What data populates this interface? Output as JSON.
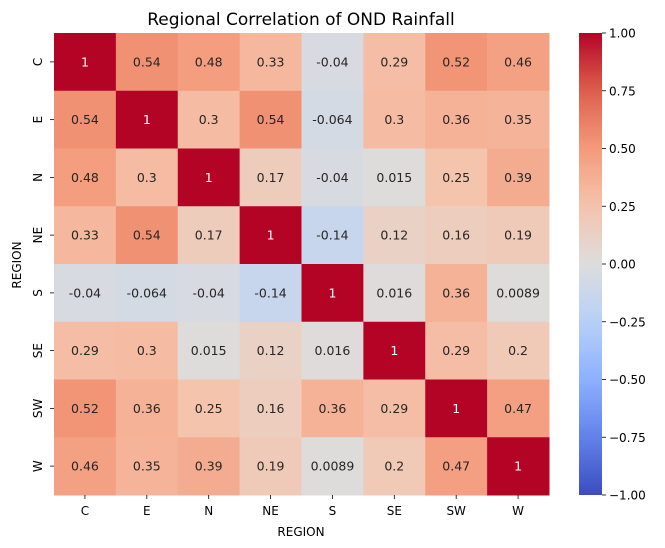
{
  "chart_data": {
    "type": "heatmap",
    "title": "Regional Correlation of OND Rainfall",
    "xlabel": "REGION",
    "ylabel": "REGION",
    "x_categories": [
      "C",
      "E",
      "N",
      "NE",
      "S",
      "SE",
      "SW",
      "W"
    ],
    "y_categories": [
      "C",
      "E",
      "N",
      "NE",
      "S",
      "SE",
      "SW",
      "W"
    ],
    "values": [
      [
        1,
        0.54,
        0.48,
        0.33,
        -0.04,
        0.29,
        0.52,
        0.46
      ],
      [
        0.54,
        1,
        0.3,
        0.54,
        -0.064,
        0.3,
        0.36,
        0.35
      ],
      [
        0.48,
        0.3,
        1,
        0.17,
        -0.04,
        0.015,
        0.25,
        0.39
      ],
      [
        0.33,
        0.54,
        0.17,
        1,
        -0.14,
        0.12,
        0.16,
        0.19
      ],
      [
        -0.04,
        -0.064,
        -0.04,
        -0.14,
        1,
        0.016,
        0.36,
        0.0089
      ],
      [
        0.29,
        0.3,
        0.015,
        0.12,
        0.016,
        1,
        0.29,
        0.2
      ],
      [
        0.52,
        0.36,
        0.25,
        0.16,
        0.36,
        0.29,
        1,
        0.47
      ],
      [
        0.46,
        0.35,
        0.39,
        0.19,
        0.0089,
        0.2,
        0.47,
        1
      ]
    ],
    "colormap": "coolwarm",
    "vmin": -1,
    "vmax": 1,
    "annotated": true,
    "colorbar": {
      "ticks": [
        1.0,
        0.75,
        0.5,
        0.25,
        0.0,
        -0.25,
        -0.5,
        -0.75,
        -1.0
      ],
      "tick_labels": [
        "1.00",
        "0.75",
        "0.50",
        "0.25",
        "0.00",
        "−0.25",
        "−0.50",
        "−0.75",
        "−1.00"
      ],
      "position": "right"
    }
  }
}
